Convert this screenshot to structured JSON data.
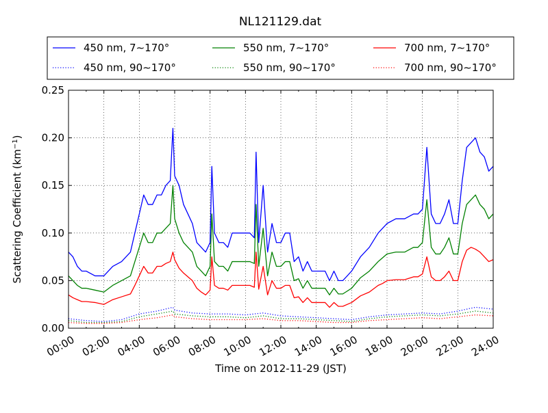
{
  "chart_data": {
    "type": "line",
    "title": "NL121129.dat",
    "xlabel": "Time on 2012-11-29 (JST)",
    "ylabel": "Scattering Coefficient (km",
    "ylabel_unit_sup": "−1",
    "ylabel_close": ")",
    "x_unit": "hours",
    "xlim": [
      0,
      24
    ],
    "ylim": [
      0,
      0.25
    ],
    "grid": true,
    "legend_position": "top (above plot, 3 columns)",
    "x_ticks": [
      "00:00",
      "02:00",
      "04:00",
      "06:00",
      "08:00",
      "10:00",
      "12:00",
      "14:00",
      "16:00",
      "18:00",
      "20:00",
      "22:00",
      "24:00"
    ],
    "y_ticks": [
      "0.00",
      "0.05",
      "0.10",
      "0.15",
      "0.20",
      "0.25"
    ],
    "series": [
      {
        "name": "450 nm, 7∼170°",
        "color": "#0000ff",
        "style": "solid",
        "x": [
          0.0,
          0.25,
          0.5,
          0.75,
          1.0,
          1.5,
          2.0,
          2.5,
          3.0,
          3.5,
          3.75,
          4.0,
          4.25,
          4.5,
          4.75,
          5.0,
          5.25,
          5.5,
          5.75,
          5.9,
          6.0,
          6.25,
          6.5,
          6.75,
          7.0,
          7.25,
          7.5,
          7.75,
          8.0,
          8.1,
          8.25,
          8.5,
          8.75,
          9.0,
          9.25,
          9.5,
          9.75,
          10.0,
          10.25,
          10.5,
          10.6,
          10.75,
          11.0,
          11.25,
          11.5,
          11.75,
          12.0,
          12.25,
          12.5,
          12.75,
          13.0,
          13.25,
          13.5,
          13.75,
          14.0,
          14.25,
          14.5,
          14.75,
          15.0,
          15.25,
          15.5,
          16.0,
          16.5,
          17.0,
          17.5,
          17.75,
          18.0,
          18.5,
          19.0,
          19.5,
          19.75,
          20.0,
          20.25,
          20.5,
          20.75,
          21.0,
          21.25,
          21.5,
          21.75,
          22.0,
          22.25,
          22.5,
          22.75,
          23.0,
          23.25,
          23.5,
          23.75,
          24.0
        ],
        "values": [
          0.08,
          0.075,
          0.065,
          0.06,
          0.06,
          0.055,
          0.055,
          0.065,
          0.07,
          0.08,
          0.1,
          0.12,
          0.14,
          0.13,
          0.13,
          0.14,
          0.14,
          0.15,
          0.155,
          0.21,
          0.16,
          0.15,
          0.13,
          0.12,
          0.11,
          0.09,
          0.085,
          0.08,
          0.09,
          0.17,
          0.1,
          0.09,
          0.09,
          0.085,
          0.1,
          0.1,
          0.1,
          0.1,
          0.1,
          0.095,
          0.185,
          0.09,
          0.15,
          0.08,
          0.11,
          0.09,
          0.09,
          0.1,
          0.1,
          0.07,
          0.075,
          0.06,
          0.07,
          0.06,
          0.06,
          0.06,
          0.06,
          0.05,
          0.06,
          0.05,
          0.05,
          0.06,
          0.075,
          0.085,
          0.1,
          0.105,
          0.11,
          0.115,
          0.115,
          0.12,
          0.12,
          0.125,
          0.19,
          0.12,
          0.11,
          0.11,
          0.12,
          0.135,
          0.11,
          0.11,
          0.155,
          0.19,
          0.195,
          0.2,
          0.185,
          0.18,
          0.165,
          0.17
        ]
      },
      {
        "name": "550 nm, 7∼170°",
        "color": "#008000",
        "style": "solid",
        "x": [
          0.0,
          0.25,
          0.5,
          0.75,
          1.0,
          1.5,
          2.0,
          2.5,
          3.0,
          3.5,
          3.75,
          4.0,
          4.25,
          4.5,
          4.75,
          5.0,
          5.25,
          5.5,
          5.75,
          5.9,
          6.0,
          6.25,
          6.5,
          6.75,
          7.0,
          7.25,
          7.5,
          7.75,
          8.0,
          8.1,
          8.25,
          8.5,
          8.75,
          9.0,
          9.25,
          9.5,
          9.75,
          10.0,
          10.25,
          10.5,
          10.6,
          10.75,
          11.0,
          11.25,
          11.5,
          11.75,
          12.0,
          12.25,
          12.5,
          12.75,
          13.0,
          13.25,
          13.5,
          13.75,
          14.0,
          14.25,
          14.5,
          14.75,
          15.0,
          15.25,
          15.5,
          16.0,
          16.5,
          17.0,
          17.5,
          17.75,
          18.0,
          18.5,
          19.0,
          19.5,
          19.75,
          20.0,
          20.25,
          20.5,
          20.75,
          21.0,
          21.25,
          21.5,
          21.75,
          22.0,
          22.25,
          22.5,
          22.75,
          23.0,
          23.25,
          23.5,
          23.75,
          24.0
        ],
        "values": [
          0.055,
          0.05,
          0.045,
          0.042,
          0.042,
          0.04,
          0.038,
          0.045,
          0.05,
          0.055,
          0.07,
          0.085,
          0.1,
          0.09,
          0.09,
          0.1,
          0.1,
          0.105,
          0.11,
          0.15,
          0.115,
          0.1,
          0.09,
          0.085,
          0.08,
          0.065,
          0.06,
          0.055,
          0.065,
          0.12,
          0.07,
          0.065,
          0.065,
          0.06,
          0.07,
          0.07,
          0.07,
          0.07,
          0.07,
          0.068,
          0.13,
          0.065,
          0.105,
          0.055,
          0.08,
          0.065,
          0.065,
          0.07,
          0.07,
          0.05,
          0.052,
          0.042,
          0.05,
          0.042,
          0.042,
          0.042,
          0.042,
          0.035,
          0.042,
          0.036,
          0.036,
          0.042,
          0.053,
          0.06,
          0.07,
          0.074,
          0.078,
          0.08,
          0.08,
          0.085,
          0.085,
          0.09,
          0.135,
          0.085,
          0.078,
          0.078,
          0.085,
          0.095,
          0.078,
          0.078,
          0.11,
          0.13,
          0.135,
          0.14,
          0.13,
          0.125,
          0.115,
          0.12
        ]
      },
      {
        "name": "700 nm, 7∼170°",
        "color": "#ff0000",
        "style": "solid",
        "x": [
          0.0,
          0.25,
          0.5,
          0.75,
          1.0,
          1.5,
          2.0,
          2.5,
          3.0,
          3.5,
          3.75,
          4.0,
          4.25,
          4.5,
          4.75,
          5.0,
          5.25,
          5.5,
          5.75,
          5.9,
          6.0,
          6.25,
          6.5,
          6.75,
          7.0,
          7.25,
          7.5,
          7.75,
          8.0,
          8.1,
          8.25,
          8.5,
          8.75,
          9.0,
          9.25,
          9.5,
          9.75,
          10.0,
          10.25,
          10.5,
          10.6,
          10.75,
          11.0,
          11.25,
          11.5,
          11.75,
          12.0,
          12.25,
          12.5,
          12.75,
          13.0,
          13.25,
          13.5,
          13.75,
          14.0,
          14.25,
          14.5,
          14.75,
          15.0,
          15.25,
          15.5,
          16.0,
          16.5,
          17.0,
          17.5,
          17.75,
          18.0,
          18.5,
          19.0,
          19.5,
          19.75,
          20.0,
          20.25,
          20.5,
          20.75,
          21.0,
          21.25,
          21.5,
          21.75,
          22.0,
          22.25,
          22.5,
          22.75,
          23.0,
          23.25,
          23.5,
          23.75,
          24.0
        ],
        "values": [
          0.035,
          0.032,
          0.03,
          0.028,
          0.028,
          0.027,
          0.025,
          0.03,
          0.033,
          0.036,
          0.045,
          0.055,
          0.065,
          0.058,
          0.058,
          0.065,
          0.065,
          0.068,
          0.07,
          0.08,
          0.072,
          0.063,
          0.058,
          0.054,
          0.05,
          0.042,
          0.038,
          0.035,
          0.04,
          0.075,
          0.045,
          0.042,
          0.042,
          0.04,
          0.045,
          0.045,
          0.045,
          0.045,
          0.045,
          0.043,
          0.08,
          0.041,
          0.065,
          0.035,
          0.05,
          0.042,
          0.042,
          0.045,
          0.045,
          0.032,
          0.033,
          0.027,
          0.032,
          0.027,
          0.027,
          0.027,
          0.027,
          0.022,
          0.027,
          0.023,
          0.023,
          0.027,
          0.034,
          0.038,
          0.045,
          0.047,
          0.05,
          0.051,
          0.051,
          0.054,
          0.054,
          0.057,
          0.075,
          0.054,
          0.05,
          0.05,
          0.054,
          0.06,
          0.05,
          0.05,
          0.07,
          0.082,
          0.085,
          0.083,
          0.08,
          0.075,
          0.07,
          0.072
        ]
      },
      {
        "name": "450 nm, 90∼170°",
        "color": "#0000ff",
        "style": "dotted",
        "x": [
          0,
          1,
          2,
          3,
          4,
          5,
          5.9,
          6,
          7,
          8,
          9,
          10,
          11,
          12,
          13,
          14,
          15,
          16,
          17,
          18,
          19,
          20,
          21,
          22,
          23,
          24
        ],
        "values": [
          0.01,
          0.008,
          0.007,
          0.009,
          0.015,
          0.018,
          0.022,
          0.019,
          0.016,
          0.015,
          0.015,
          0.014,
          0.016,
          0.013,
          0.012,
          0.011,
          0.01,
          0.009,
          0.012,
          0.014,
          0.015,
          0.016,
          0.015,
          0.018,
          0.022,
          0.02
        ]
      },
      {
        "name": "550 nm, 90∼170°",
        "color": "#008000",
        "style": "dotted",
        "x": [
          0,
          1,
          2,
          3,
          4,
          5,
          5.9,
          6,
          7,
          8,
          9,
          10,
          11,
          12,
          13,
          14,
          15,
          16,
          17,
          18,
          19,
          20,
          21,
          22,
          23,
          24
        ],
        "values": [
          0.008,
          0.006,
          0.006,
          0.007,
          0.012,
          0.015,
          0.018,
          0.015,
          0.013,
          0.012,
          0.012,
          0.011,
          0.013,
          0.01,
          0.01,
          0.009,
          0.008,
          0.007,
          0.01,
          0.012,
          0.013,
          0.014,
          0.013,
          0.015,
          0.018,
          0.016
        ]
      },
      {
        "name": "700 nm, 90∼170°",
        "color": "#ff0000",
        "style": "dotted",
        "x": [
          0,
          1,
          2,
          3,
          4,
          5,
          5.9,
          6,
          7,
          8,
          9,
          10,
          11,
          12,
          13,
          14,
          15,
          16,
          17,
          18,
          19,
          20,
          21,
          22,
          23,
          24
        ],
        "values": [
          0.006,
          0.005,
          0.005,
          0.006,
          0.009,
          0.011,
          0.014,
          0.012,
          0.01,
          0.009,
          0.009,
          0.009,
          0.01,
          0.008,
          0.008,
          0.007,
          0.006,
          0.006,
          0.008,
          0.009,
          0.01,
          0.011,
          0.01,
          0.012,
          0.014,
          0.013
        ]
      }
    ]
  }
}
